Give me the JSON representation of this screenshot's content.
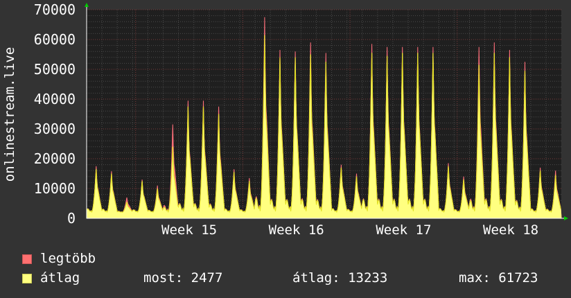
{
  "chart_data": {
    "type": "area",
    "ylabel": "onlinestream.live",
    "ylim": [
      0,
      70000
    ],
    "yticks": [
      0,
      10000,
      20000,
      30000,
      40000,
      50000,
      60000,
      70000
    ],
    "xlabels": [
      "Week 15",
      "Week 16",
      "Week 17",
      "Week 18"
    ],
    "grid": true,
    "series": [
      {
        "name": "legtöbb",
        "color": "#ff6f7a",
        "daily_peaks": [
          17500,
          15800,
          7000,
          13000,
          11000,
          31500,
          39500,
          39500,
          37500,
          16500,
          13500,
          67500,
          56500,
          56000,
          59000,
          55500,
          18000,
          15000,
          58500,
          57500,
          57500,
          57500,
          57500,
          18500,
          14000,
          57500,
          59000,
          56500,
          52500,
          17000,
          16000
        ]
      },
      {
        "name": "átlag",
        "color": "#ffff80",
        "daily_peaks": [
          16500,
          15000,
          5500,
          12500,
          10000,
          24000,
          37500,
          37500,
          35000,
          15500,
          12500,
          61500,
          54000,
          54000,
          55000,
          52500,
          17000,
          14000,
          55500,
          54500,
          55500,
          55500,
          55500,
          17500,
          13000,
          51500,
          55500,
          54000,
          49500,
          16000,
          14500
        ]
      }
    ]
  },
  "legend": {
    "items": [
      {
        "label": "legtöbb",
        "color": "#ff7070"
      },
      {
        "label": "átlag",
        "color": "#ffff80"
      }
    ],
    "stats": {
      "most": "most: 2477",
      "atlag": "átlag: 13233",
      "max": "max: 61723"
    }
  },
  "colors": {
    "background": "#333333",
    "plot_background": "#1f1f1f",
    "grid_major": "#7a3a3a",
    "grid_minor": "#4a4a4a",
    "axis": "#ffffff",
    "arrow": "#00cc00"
  }
}
